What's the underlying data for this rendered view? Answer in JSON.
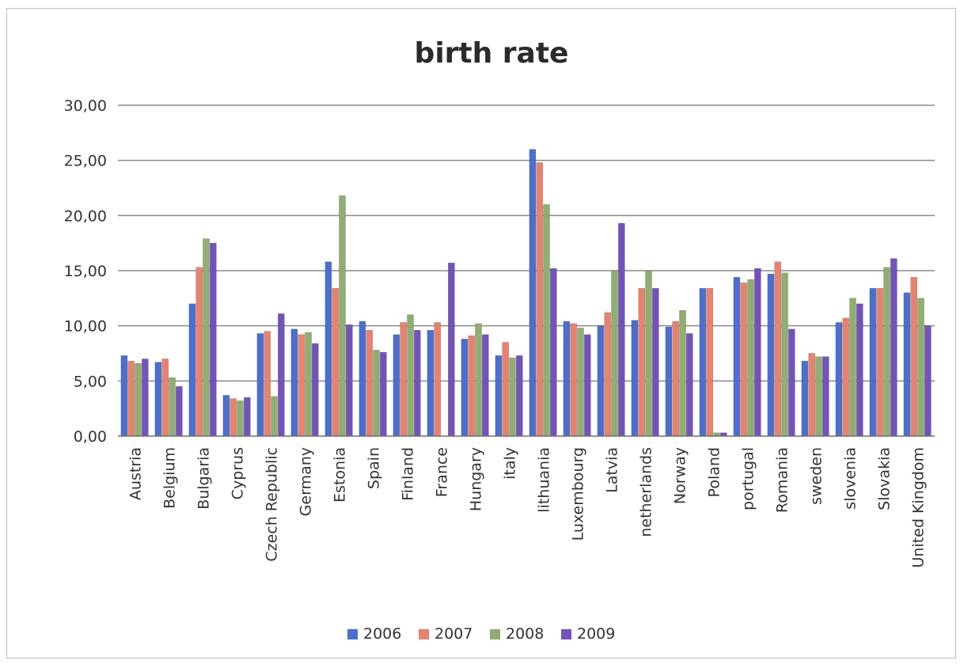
{
  "chart_data": {
    "type": "bar",
    "title": "birth rate",
    "xlabel": "",
    "ylabel": "",
    "ylim": [
      0,
      30
    ],
    "yticks": [
      "0,00",
      "5,00",
      "10,00",
      "15,00",
      "20,00",
      "25,00",
      "30,00"
    ],
    "grid": true,
    "legend_position": "bottom",
    "categories": [
      "Austria",
      "Belgium",
      "Bulgaria",
      "Cyprus",
      "Czech Republic",
      "Germany",
      "Estonia",
      "Spain",
      "Finland",
      "France",
      "Hungary",
      "italy",
      "lithuania",
      "Luxembourg",
      "Latvia",
      "netherlands",
      "Norway",
      "Poland",
      "portugal",
      "Romania",
      "sweden",
      "slovenia",
      "Slovakia",
      "United Kingdom"
    ],
    "series": [
      {
        "name": "2006",
        "color": "#4a6fd0",
        "values": [
          7.3,
          6.7,
          12.0,
          3.7,
          9.3,
          9.7,
          15.8,
          10.4,
          9.2,
          9.6,
          8.8,
          7.3,
          26.0,
          10.4,
          10.0,
          10.5,
          9.9,
          13.4,
          14.4,
          14.7,
          6.8,
          10.3,
          13.4,
          13.0
        ]
      },
      {
        "name": "2007",
        "color": "#e8826e",
        "values": [
          6.8,
          7.0,
          15.3,
          3.4,
          9.5,
          9.2,
          13.4,
          9.6,
          10.3,
          10.3,
          9.1,
          8.5,
          24.8,
          10.2,
          11.2,
          13.4,
          10.4,
          13.4,
          13.9,
          15.8,
          7.5,
          10.7,
          13.4,
          14.4
        ]
      },
      {
        "name": "2008",
        "color": "#8fae72",
        "values": [
          6.6,
          5.3,
          17.9,
          3.2,
          3.6,
          9.4,
          21.8,
          7.8,
          11.0,
          0,
          10.2,
          7.1,
          21.0,
          9.8,
          15.0,
          15.0,
          11.4,
          0.3,
          14.2,
          14.8,
          7.2,
          12.5,
          15.3,
          12.5
        ]
      },
      {
        "name": "2009",
        "color": "#7353ba",
        "values": [
          7.0,
          4.5,
          17.5,
          3.5,
          11.1,
          8.4,
          10.1,
          7.6,
          9.6,
          15.7,
          9.2,
          7.3,
          15.2,
          9.2,
          19.3,
          13.4,
          9.3,
          0.3,
          15.2,
          9.7,
          7.2,
          12.0,
          16.1,
          10.0
        ]
      }
    ]
  }
}
